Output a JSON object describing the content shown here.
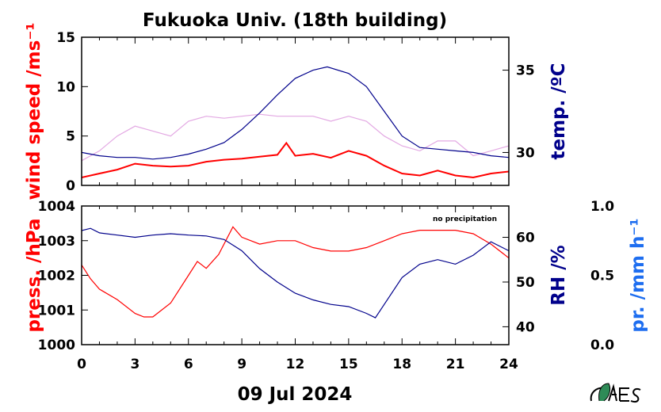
{
  "chart_data": [
    {
      "type": "line",
      "title": "Fukuoka Univ. (18th building)",
      "xlabel": "09 Jul 2024",
      "x_ticks": [
        0,
        3,
        6,
        9,
        12,
        15,
        18,
        21,
        24
      ],
      "xlim": [
        0,
        24
      ],
      "left_axis": {
        "label": "wind speed /ms⁻¹",
        "color": "#ff0000",
        "ylim": [
          0,
          15
        ],
        "ticks": [
          0,
          5,
          10,
          15
        ]
      },
      "right_axis": {
        "label": "temp. /ºC",
        "color": "#00008b",
        "ylim": [
          28,
          37
        ],
        "ticks": [
          30,
          35
        ]
      },
      "series": [
        {
          "color": "#ff0000",
          "axis": "left",
          "x": [
            0,
            1,
            2,
            3,
            4,
            5,
            6,
            7,
            8,
            9,
            10,
            11,
            11.5,
            12,
            13,
            14,
            15,
            16,
            17,
            18,
            19,
            20,
            21,
            22,
            23,
            24
          ],
          "y": [
            0.8,
            1.2,
            1.6,
            2.2,
            2.0,
            1.9,
            2.0,
            2.4,
            2.6,
            2.7,
            2.9,
            3.1,
            4.3,
            3.0,
            3.2,
            2.8,
            3.5,
            3.0,
            2.0,
            1.2,
            1.0,
            1.5,
            1.0,
            0.8,
            1.2,
            1.4
          ]
        },
        {
          "color": "#e3a8e3",
          "axis": "left",
          "x": [
            0,
            1,
            2,
            3,
            4,
            5,
            6,
            7,
            8,
            9,
            10,
            11,
            12,
            13,
            14,
            15,
            16,
            17,
            18,
            19,
            20,
            21,
            22,
            23,
            24
          ],
          "y": [
            2.5,
            3.5,
            5.0,
            6.0,
            5.5,
            5.0,
            6.5,
            7.0,
            6.8,
            7.0,
            7.2,
            7.0,
            7.0,
            7.0,
            6.5,
            7.0,
            6.5,
            5.0,
            4.0,
            3.5,
            4.5,
            4.5,
            3.0,
            3.5,
            4.0
          ]
        },
        {
          "color": "#00008b",
          "axis": "right",
          "x": [
            0,
            1,
            2,
            3,
            4,
            5,
            6,
            7,
            8,
            9,
            10,
            11,
            12,
            13,
            13.8,
            15,
            16,
            17,
            18,
            19,
            20,
            21,
            22,
            23,
            24
          ],
          "y": [
            30.0,
            29.8,
            29.7,
            29.7,
            29.6,
            29.7,
            29.9,
            30.2,
            30.6,
            31.4,
            32.4,
            33.5,
            34.5,
            35.0,
            35.2,
            34.8,
            34.0,
            32.5,
            31.0,
            30.3,
            30.2,
            30.1,
            30.0,
            29.8,
            29.7
          ]
        }
      ]
    },
    {
      "type": "line",
      "left_axis": {
        "label": "press. /hPa",
        "color": "#ff0000",
        "ylim": [
          1000,
          1004
        ],
        "ticks": [
          1000,
          1001,
          1002,
          1003,
          1004
        ]
      },
      "right_axis": {
        "label": "RH /%",
        "color": "#00008b",
        "ylim": [
          36,
          67
        ],
        "ticks": [
          40,
          50,
          60
        ]
      },
      "third_axis": {
        "label": "pr. /mm h⁻¹",
        "color": "#1e6ef0",
        "ylim": [
          0,
          1
        ],
        "ticks": [
          "0.0",
          "0.5",
          "1.0"
        ]
      },
      "note": "no precipitation",
      "series": [
        {
          "color": "#ff0000",
          "axis": "left",
          "x": [
            0,
            0.5,
            1,
            2,
            3,
            3.5,
            4,
            5,
            6,
            6.5,
            7,
            7.7,
            8.5,
            9,
            10,
            11,
            12,
            13,
            14,
            15,
            16,
            17,
            18,
            19,
            20,
            21,
            22,
            23,
            24
          ],
          "y": [
            1002.3,
            1001.9,
            1001.6,
            1001.3,
            1000.9,
            1000.8,
            1000.8,
            1001.2,
            1002.0,
            1002.4,
            1002.2,
            1002.6,
            1003.4,
            1003.1,
            1002.9,
            1003.0,
            1003.0,
            1002.8,
            1002.7,
            1002.7,
            1002.8,
            1003.0,
            1003.2,
            1003.3,
            1003.3,
            1003.3,
            1003.2,
            1002.9,
            1002.5
          ]
        },
        {
          "color": "#00008b",
          "axis": "right",
          "x": [
            0,
            0.5,
            1,
            2,
            3,
            4,
            5,
            6,
            7,
            8,
            9,
            10,
            11,
            12,
            13,
            14,
            15,
            16,
            16.5,
            17,
            18,
            19,
            20,
            21,
            22,
            23,
            24
          ],
          "y": [
            61.5,
            62.0,
            61.0,
            60.5,
            60.0,
            60.5,
            60.8,
            60.5,
            60.3,
            59.5,
            57.0,
            53.0,
            50.0,
            47.5,
            46.0,
            45.0,
            44.5,
            43.0,
            42.0,
            45.0,
            51.0,
            54.0,
            55.0,
            54.0,
            56.0,
            59.0,
            57.0
          ]
        }
      ]
    }
  ]
}
